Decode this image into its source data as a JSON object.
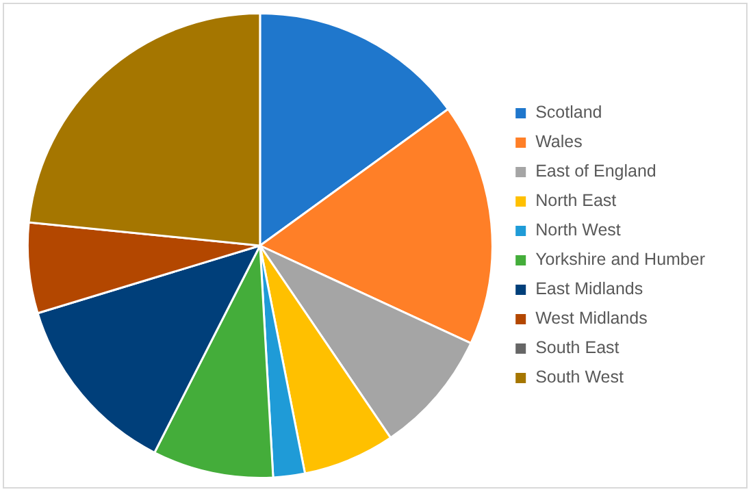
{
  "chart_data": {
    "type": "pie",
    "categories": [
      "Scotland",
      "Wales",
      "East of England",
      "North East",
      "North West",
      "Yorkshire and Humber",
      "East Midlands",
      "West Midlands",
      "South East",
      "South West"
    ],
    "values": [
      15.0,
      16.9,
      8.6,
      6.4,
      2.2,
      8.4,
      12.8,
      6.3,
      0,
      23.4
    ],
    "colors": [
      "#1f77cc",
      "#ff7f27",
      "#a5a5a5",
      "#ffc000",
      "#1f9bd7",
      "#44ad3a",
      "#003f7a",
      "#b34700",
      "#666666",
      "#a57600"
    ],
    "legend": "right"
  }
}
